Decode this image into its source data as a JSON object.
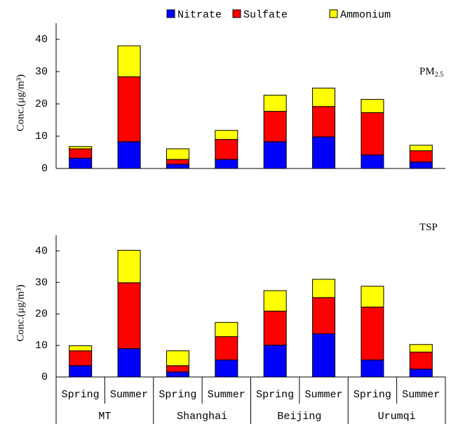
{
  "chart_data": [
    {
      "type": "stacked_bar",
      "annotation": {
        "text": "PM",
        "sub": "2.5"
      },
      "ylabel": "Conc.(μg/m³)",
      "categories": [
        null,
        null,
        null,
        null,
        null,
        null,
        null,
        null
      ],
      "series": [
        {
          "name": "Nitrate",
          "color": "#0000ff",
          "values": [
            3.2,
            8.3,
            1.3,
            2.8,
            8.3,
            9.8,
            4.2,
            2.0
          ]
        },
        {
          "name": "Sulfate",
          "color": "#ff0000",
          "values": [
            2.9,
            20.1,
            1.5,
            6.2,
            9.4,
            9.4,
            13.1,
            3.5
          ]
        },
        {
          "name": "Ammonium",
          "color": "#ffff00",
          "values": [
            0.7,
            9.6,
            3.3,
            2.8,
            5.0,
            5.7,
            4.1,
            1.7
          ]
        }
      ],
      "ylim": [
        0,
        45
      ],
      "yticks": [
        0,
        10,
        20,
        30,
        40
      ],
      "legend": "top"
    },
    {
      "type": "stacked_bar",
      "annotation": {
        "text": "TSP"
      },
      "ylabel": "Conc.(μg/m³)",
      "categories": [
        "Spring",
        "Summer",
        "Spring",
        "Summer",
        "Spring",
        "Summer",
        "Spring",
        "Summer"
      ],
      "groups": [
        "MT",
        "Shanghai",
        "Beijing",
        "Urumqi"
      ],
      "series": [
        {
          "color": "#0000ff",
          "values": [
            3.6,
            9.0,
            1.6,
            5.4,
            10.1,
            13.7,
            5.4,
            2.5
          ]
        },
        {
          "color": "#ff0000",
          "values": [
            4.7,
            20.9,
            2.0,
            7.4,
            10.8,
            11.5,
            16.8,
            5.4
          ]
        },
        {
          "color": "#ffff00",
          "values": [
            1.6,
            10.3,
            4.7,
            4.5,
            6.5,
            5.8,
            6.6,
            2.4
          ]
        }
      ],
      "ylim": [
        0,
        45
      ],
      "yticks": [
        0,
        10,
        20,
        30,
        40
      ]
    }
  ]
}
